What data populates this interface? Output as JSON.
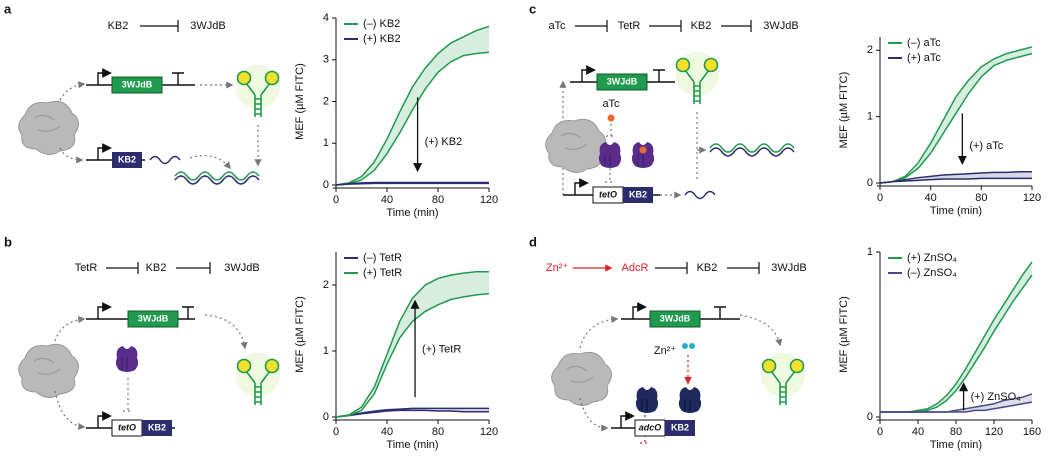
{
  "chart_data": [
    {
      "type": "line",
      "panel_label": "a",
      "xlabel": "Time (min)",
      "ylabel": "MEF (µM FITC)",
      "x": [
        0,
        10,
        20,
        30,
        40,
        50,
        60,
        70,
        80,
        90,
        100,
        110,
        120
      ],
      "xlim": [
        0,
        120
      ],
      "xticks": [
        0,
        40,
        80,
        120
      ],
      "ylim": [
        0,
        4
      ],
      "yticks": [
        0,
        1,
        2,
        3,
        4
      ],
      "legend": "upper left",
      "annotation": "(+) KB2",
      "series": [
        {
          "name": "(–) KB2",
          "color": "#1f9a4f",
          "values": [
            0,
            0.05,
            0.2,
            0.55,
            1.1,
            1.75,
            2.35,
            2.8,
            3.15,
            3.4,
            3.55,
            3.7,
            3.8
          ],
          "lower": [
            0,
            0.03,
            0.12,
            0.35,
            0.75,
            1.25,
            1.8,
            2.3,
            2.7,
            2.95,
            3.1,
            3.15,
            3.18
          ]
        },
        {
          "name": "(+) KB2",
          "color": "#2b2d6e",
          "values": [
            0,
            0.03,
            0.05,
            0.06,
            0.06,
            0.06,
            0.06,
            0.06,
            0.06,
            0.06,
            0.06,
            0.06,
            0.06
          ],
          "lower": [
            0,
            0.02,
            0.03,
            0.04,
            0.04,
            0.04,
            0.04,
            0.04,
            0.04,
            0.04,
            0.04,
            0.04,
            0.04
          ]
        }
      ]
    },
    {
      "type": "line",
      "panel_label": "b",
      "xlabel": "Time (min)",
      "ylabel": "MEF (µM FITC)",
      "x": [
        0,
        10,
        20,
        30,
        40,
        50,
        60,
        70,
        80,
        90,
        100,
        110,
        120
      ],
      "xlim": [
        0,
        120
      ],
      "xticks": [
        0,
        40,
        80,
        120
      ],
      "ylim": [
        0,
        2.5
      ],
      "yticks": [
        0,
        1,
        2
      ],
      "legend": "upper left",
      "annotation": "(+) TetR",
      "series": [
        {
          "name": "(–) TetR",
          "color": "#2b2d6e",
          "values": [
            0,
            0.03,
            0.06,
            0.09,
            0.11,
            0.12,
            0.13,
            0.13,
            0.13,
            0.13,
            0.13,
            0.13,
            0.13
          ],
          "lower": [
            0,
            0.02,
            0.05,
            0.07,
            0.09,
            0.1,
            0.1,
            0.1,
            0.09,
            0.09,
            0.08,
            0.08,
            0.08
          ]
        },
        {
          "name": "(+) TetR",
          "color": "#1f9a4f",
          "values": [
            0,
            0.03,
            0.15,
            0.45,
            0.95,
            1.45,
            1.8,
            2.0,
            2.1,
            2.15,
            2.18,
            2.2,
            2.2
          ],
          "lower": [
            0,
            0.02,
            0.1,
            0.35,
            0.8,
            1.2,
            1.45,
            1.6,
            1.7,
            1.78,
            1.82,
            1.85,
            1.87
          ]
        }
      ]
    },
    {
      "type": "line",
      "panel_label": "c",
      "xlabel": "Time (min)",
      "ylabel": "MEF (µM FITC)",
      "x": [
        0,
        10,
        20,
        30,
        40,
        50,
        60,
        70,
        80,
        90,
        100,
        110,
        120
      ],
      "xlim": [
        0,
        120
      ],
      "xticks": [
        0,
        40,
        80,
        120
      ],
      "ylim": [
        0,
        2.2
      ],
      "yticks": [
        0,
        1,
        2
      ],
      "legend": "upper left",
      "annotation": "(+) aTc",
      "series": [
        {
          "name": "(–) aTc",
          "color": "#1f9a4f",
          "values": [
            0,
            0.02,
            0.1,
            0.3,
            0.6,
            0.95,
            1.3,
            1.55,
            1.75,
            1.87,
            1.95,
            2.0,
            2.05
          ],
          "lower": [
            0,
            0.02,
            0.08,
            0.22,
            0.45,
            0.75,
            1.05,
            1.35,
            1.6,
            1.77,
            1.85,
            1.9,
            1.95
          ]
        },
        {
          "name": "(+) aTc",
          "color": "#2b2d6e",
          "values": [
            0,
            0.02,
            0.05,
            0.08,
            0.1,
            0.12,
            0.13,
            0.14,
            0.15,
            0.16,
            0.16,
            0.17,
            0.17
          ],
          "lower": [
            0,
            0.02,
            0.03,
            0.04,
            0.05,
            0.06,
            0.06,
            0.06,
            0.07,
            0.07,
            0.07,
            0.07,
            0.07
          ]
        }
      ]
    },
    {
      "type": "line",
      "panel_label": "d",
      "xlabel": "Time (min)",
      "ylabel": "MEF (µM FITC)",
      "x": [
        0,
        10,
        20,
        30,
        40,
        50,
        60,
        70,
        80,
        90,
        100,
        110,
        120,
        130,
        140,
        150,
        160
      ],
      "xlim": [
        0,
        160
      ],
      "xticks": [
        0,
        40,
        80,
        120,
        160
      ],
      "ylim": [
        0,
        1
      ],
      "yticks": [
        0,
        1
      ],
      "legend": "upper left",
      "annotation": "(+) ZnSO₄",
      "series": [
        {
          "name": "(+) ZnSO₄",
          "color": "#1f9a4f",
          "values": [
            0.03,
            0.03,
            0.03,
            0.03,
            0.04,
            0.05,
            0.08,
            0.13,
            0.2,
            0.29,
            0.39,
            0.49,
            0.59,
            0.68,
            0.77,
            0.86,
            0.94
          ],
          "lower": [
            0.03,
            0.03,
            0.03,
            0.03,
            0.03,
            0.04,
            0.06,
            0.1,
            0.16,
            0.24,
            0.33,
            0.42,
            0.52,
            0.61,
            0.7,
            0.78,
            0.86
          ]
        },
        {
          "name": "(–) ZnSO₄",
          "color": "#4a4a85",
          "values": [
            0.03,
            0.03,
            0.03,
            0.03,
            0.03,
            0.03,
            0.03,
            0.03,
            0.04,
            0.05,
            0.06,
            0.07,
            0.08,
            0.1,
            0.11,
            0.12,
            0.14
          ],
          "lower": [
            0.03,
            0.03,
            0.03,
            0.03,
            0.03,
            0.03,
            0.03,
            0.03,
            0.03,
            0.03,
            0.04,
            0.04,
            0.05,
            0.06,
            0.07,
            0.08,
            0.09
          ]
        }
      ]
    }
  ],
  "diagrams": [
    {
      "circuit": [
        "KB2",
        "3WJdB"
      ],
      "genes": [
        "3WJdB",
        "KB2"
      ]
    },
    {
      "circuit": [
        "TetR",
        "KB2",
        "3WJdB"
      ],
      "genes": [
        "3WJdB",
        "tetO",
        "KB2"
      ]
    },
    {
      "circuit": [
        "aTc",
        "TetR",
        "KB2",
        "3WJdB"
      ],
      "genes": [
        "3WJdB",
        "tetO",
        "KB2"
      ],
      "inducer": "aTc"
    },
    {
      "circuit": [
        "Zn²⁺",
        "AdcR",
        "KB2",
        "3WJdB"
      ],
      "genes": [
        "3WJdB",
        "adcO",
        "KB2"
      ],
      "inducer": "Zn²⁺"
    }
  ]
}
